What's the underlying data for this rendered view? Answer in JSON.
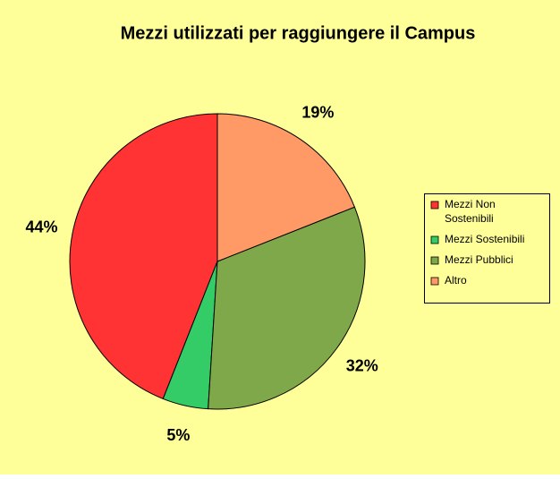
{
  "chart_data": {
    "type": "pie",
    "title": "Mezzi utilizzati per raggiungere il Campus",
    "categories": [
      "Mezzi Non Sostenibili",
      "Mezzi Sostenibili",
      "Mezzi Pubblici",
      "Altro"
    ],
    "values": [
      44,
      5,
      32,
      19
    ],
    "value_labels": [
      "44%",
      "5%",
      "32%",
      "19%"
    ],
    "colors": [
      "#ff3333",
      "#33cc66",
      "#7fa84a",
      "#ff9966"
    ],
    "legend": "right"
  }
}
